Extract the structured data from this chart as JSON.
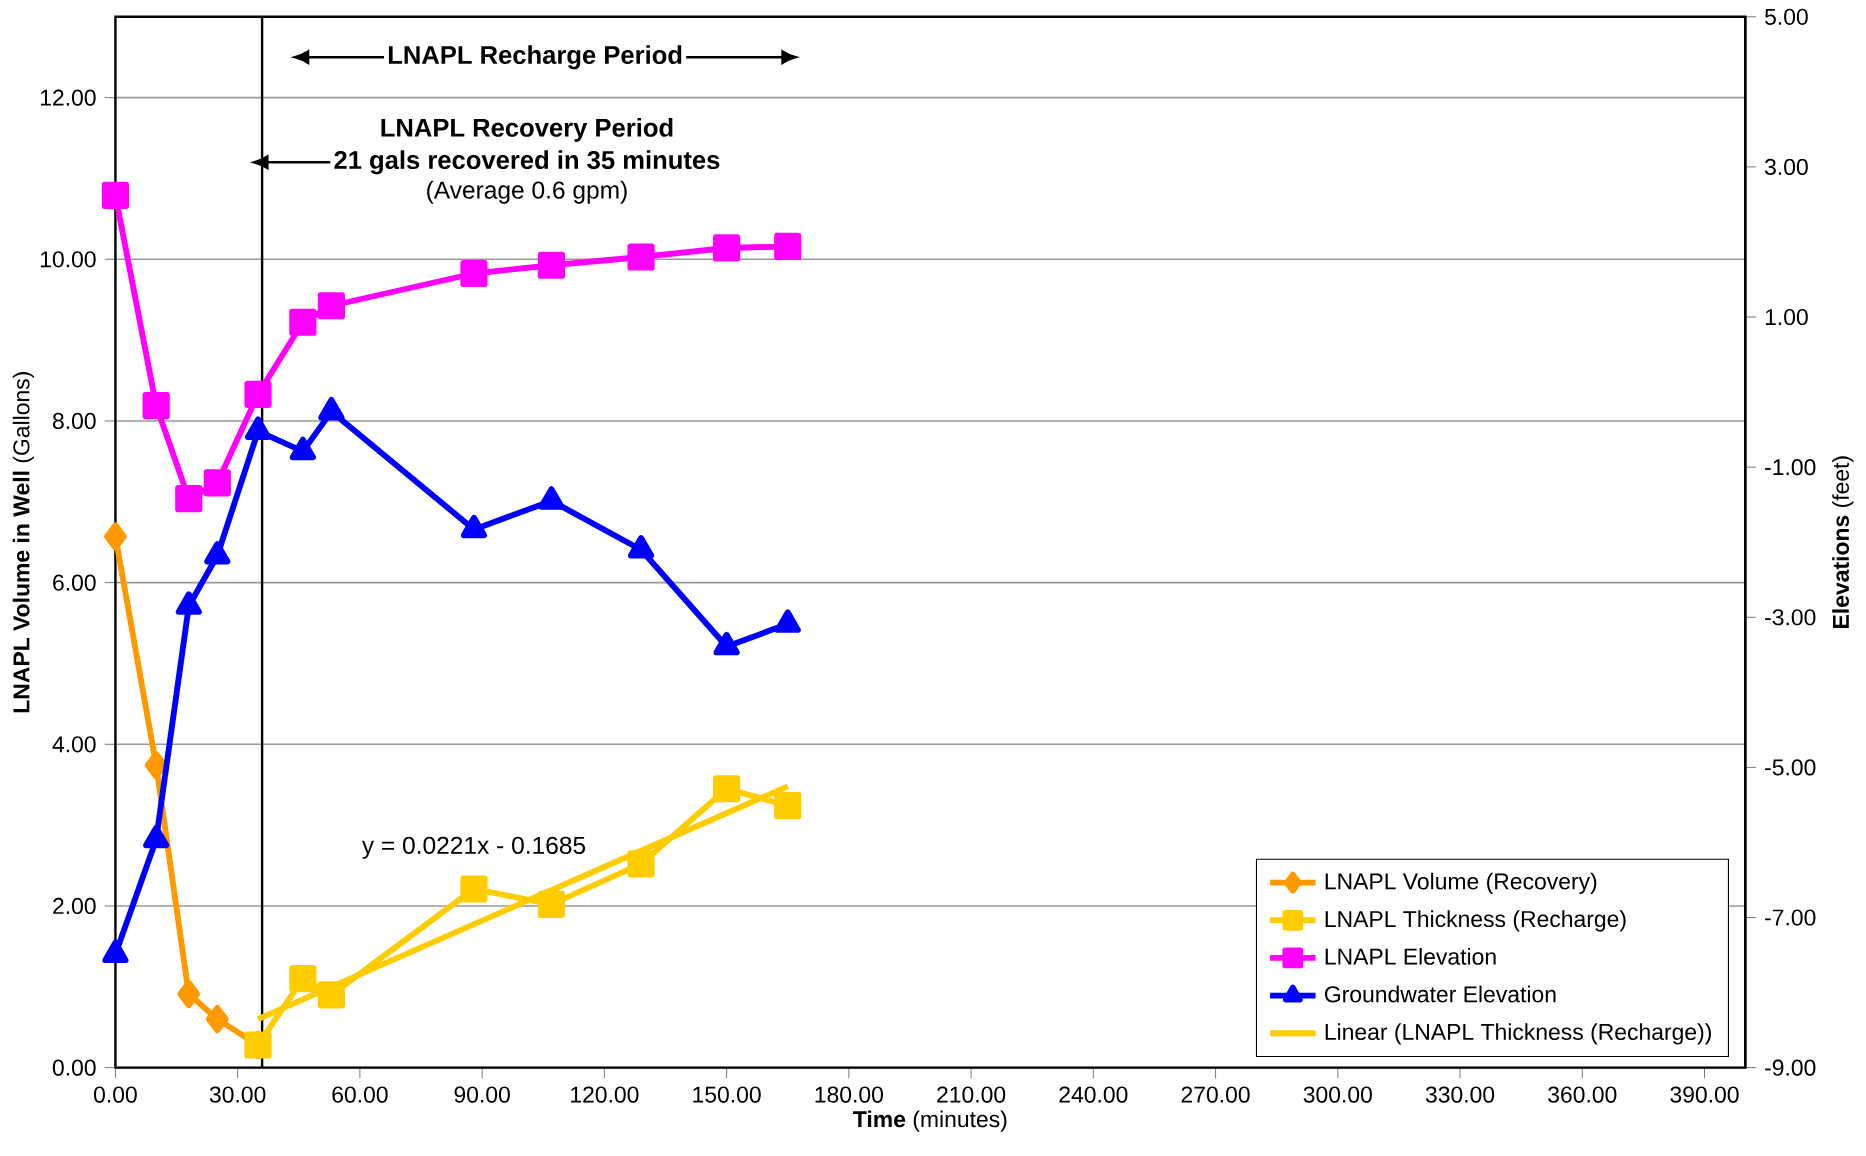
{
  "chart_data": {
    "type": "line",
    "xlabel": "**Time** (minutes)",
    "ylabel": "**LNAPL Volume in Well** (Gallons)",
    "y2label": "**Elevations** (feet)",
    "xlim": [
      0,
      400
    ],
    "ylim": [
      0,
      13
    ],
    "y2lim": [
      -9,
      5
    ],
    "xticks": [
      {
        "value": 0,
        "label": "0.00"
      },
      {
        "value": 30,
        "label": "30.00"
      },
      {
        "value": 60,
        "label": "60.00"
      },
      {
        "value": 90,
        "label": "90.00"
      },
      {
        "value": 120,
        "label": "120.00"
      },
      {
        "value": 150,
        "label": "150.00"
      },
      {
        "value": 180,
        "label": "180.00"
      },
      {
        "value": 210,
        "label": "210.00"
      },
      {
        "value": 240,
        "label": "240.00"
      },
      {
        "value": 270,
        "label": "270.00"
      },
      {
        "value": 300,
        "label": "300.00"
      },
      {
        "value": 330,
        "label": "330.00"
      },
      {
        "value": 360,
        "label": "360.00"
      },
      {
        "value": 390,
        "label": "390.00"
      }
    ],
    "yticks": [
      {
        "value": 0,
        "label": "0.00"
      },
      {
        "value": 2,
        "label": "2.00"
      },
      {
        "value": 4,
        "label": "4.00"
      },
      {
        "value": 6,
        "label": "6.00"
      },
      {
        "value": 8,
        "label": "8.00"
      },
      {
        "value": 10,
        "label": "10.00"
      },
      {
        "value": 12,
        "label": "12.00"
      }
    ],
    "y2ticks": [
      {
        "value": -9,
        "label": "-9.00"
      },
      {
        "value": -7,
        "label": "-7.00"
      },
      {
        "value": -5,
        "label": "-5.00"
      },
      {
        "value": -3,
        "label": "-3.00"
      },
      {
        "value": -1,
        "label": "-1.00"
      },
      {
        "value": 1,
        "label": "1.00"
      },
      {
        "value": 3,
        "label": "3.00"
      },
      {
        "value": 5,
        "label": "5.00"
      }
    ],
    "grid": "y",
    "legend": "bottom right",
    "ref_lines": [
      {
        "axis": "x",
        "value": 36,
        "color": "#000000"
      }
    ],
    "annotations": [
      "LNAPL Recharge Period",
      "LNAPL Recovery Period",
      "21 gals recovered in 35 minutes",
      "(Average 0.6 gpm)",
      "y = 0.0221x - 0.1685"
    ],
    "series": [
      {
        "name": "LNAPL Volume (Recovery)",
        "color": "#ff9900",
        "marker": "diamond",
        "x": [
          0,
          10,
          18,
          25,
          35
        ],
        "values": [
          6.57,
          3.74,
          0.91,
          0.6,
          0.28
        ]
      },
      {
        "name": "LNAPL Thickness (Recharge)",
        "color": "#ffcc00",
        "marker": "square",
        "x": [
          35,
          46,
          53,
          88,
          107,
          129,
          150,
          165
        ],
        "values": [
          0.28,
          1.1,
          0.9,
          2.21,
          2.02,
          2.52,
          3.45,
          3.24
        ]
      },
      {
        "name": "LNAPL Elevation",
        "color": "#ff00ff",
        "marker": "square",
        "axis": "y2",
        "x": [
          0,
          10,
          18,
          25,
          35,
          46,
          53,
          88,
          107,
          129,
          150,
          165
        ],
        "values": [
          2.62,
          -0.18,
          -1.42,
          -1.21,
          -0.03,
          0.93,
          1.15,
          1.58,
          1.69,
          1.8,
          1.92,
          1.94
        ]
      },
      {
        "name": "Groundwater Elevation",
        "color": "#0000ff",
        "marker": "triangle",
        "axis": "y2",
        "x": [
          0,
          10,
          18,
          25,
          35,
          46,
          53,
          88,
          107,
          129,
          150,
          165
        ],
        "values": [
          -7.49,
          -5.96,
          -2.85,
          -2.18,
          -0.52,
          -0.79,
          -0.26,
          -1.83,
          -1.45,
          -2.1,
          -3.39,
          -3.09
        ]
      },
      {
        "name": "Linear (LNAPL Thickness (Recharge))",
        "color": "#ffcc00",
        "marker": "none",
        "x": [
          35,
          165
        ],
        "values": [
          0.6,
          3.48
        ]
      }
    ]
  }
}
